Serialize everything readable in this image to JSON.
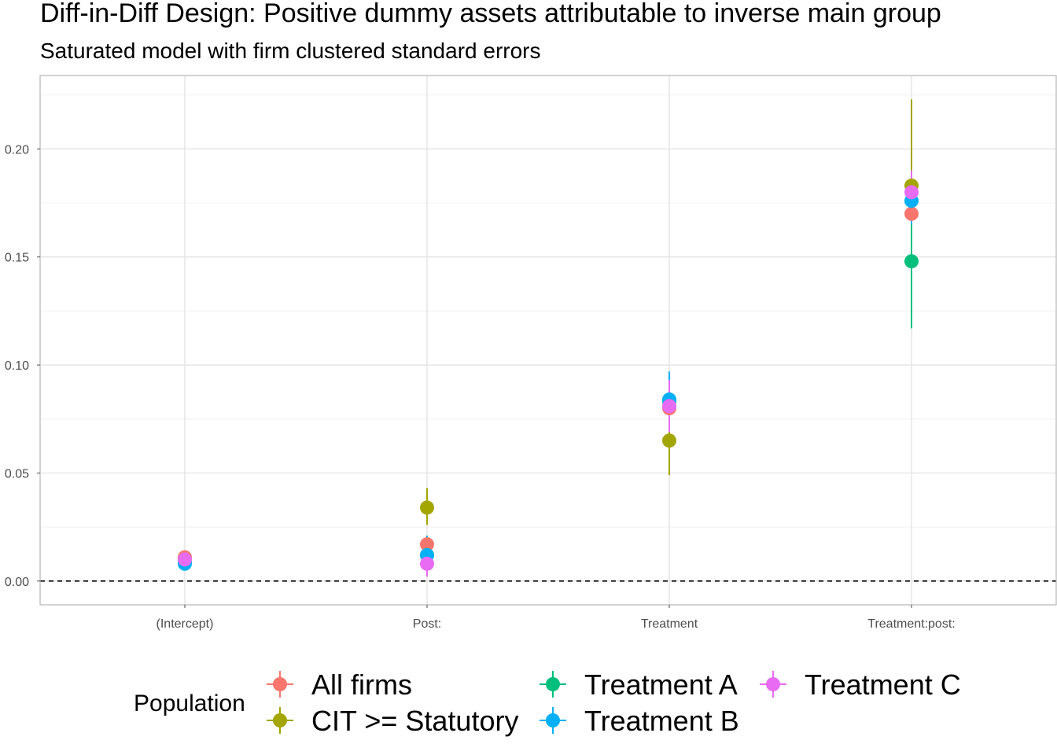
{
  "chart_data": {
    "type": "scatter",
    "title": "Diff-in-Diff Design: Positive dummy assets attributable to inverse main group",
    "subtitle": "Saturated model with firm clustered standard errors",
    "xlabel": "",
    "ylabel": "",
    "categories": [
      "(Intercept)",
      "Post:",
      "Treatment",
      "Treatment:post:"
    ],
    "ylim": [
      -0.011,
      0.234
    ],
    "y_ticks": [
      0.0,
      0.05,
      0.1,
      0.15,
      0.2
    ],
    "y_tick_labels": [
      "0.00",
      "0.05",
      "0.10",
      "0.15",
      "0.20"
    ],
    "reference_line": 0,
    "grid": true,
    "legend": {
      "title": "Population",
      "placement": "bottom"
    },
    "series": [
      {
        "name": "All firms",
        "color": "#F8766D",
        "values": [
          0.011,
          0.017,
          0.08,
          0.17
        ],
        "lower": [
          0.009,
          0.013,
          0.07,
          0.159
        ],
        "upper": [
          0.013,
          0.021,
          0.09,
          0.181
        ]
      },
      {
        "name": "CIT >= Statutory",
        "color": "#A3A500",
        "values": [
          0.01,
          0.034,
          0.065,
          0.183
        ],
        "lower": [
          0.007,
          0.026,
          0.049,
          0.143
        ],
        "upper": [
          0.013,
          0.043,
          0.081,
          0.223
        ]
      },
      {
        "name": "Treatment A",
        "color": "#00BF7D",
        "values": [
          0.009,
          0.012,
          0.083,
          0.148
        ],
        "lower": [
          0.007,
          0.007,
          0.072,
          0.117
        ],
        "upper": [
          0.011,
          0.017,
          0.094,
          0.179
        ]
      },
      {
        "name": "Treatment B",
        "color": "#00B0F6",
        "values": [
          0.008,
          0.012,
          0.084,
          0.176
        ],
        "lower": [
          0.006,
          0.003,
          0.071,
          0.165
        ],
        "upper": [
          0.01,
          0.021,
          0.097,
          0.187
        ]
      },
      {
        "name": "Treatment C",
        "color": "#E76BF3",
        "values": [
          0.01,
          0.008,
          0.081,
          0.18
        ],
        "lower": [
          0.008,
          0.002,
          0.069,
          0.17
        ],
        "upper": [
          0.012,
          0.014,
          0.093,
          0.19
        ]
      }
    ]
  }
}
